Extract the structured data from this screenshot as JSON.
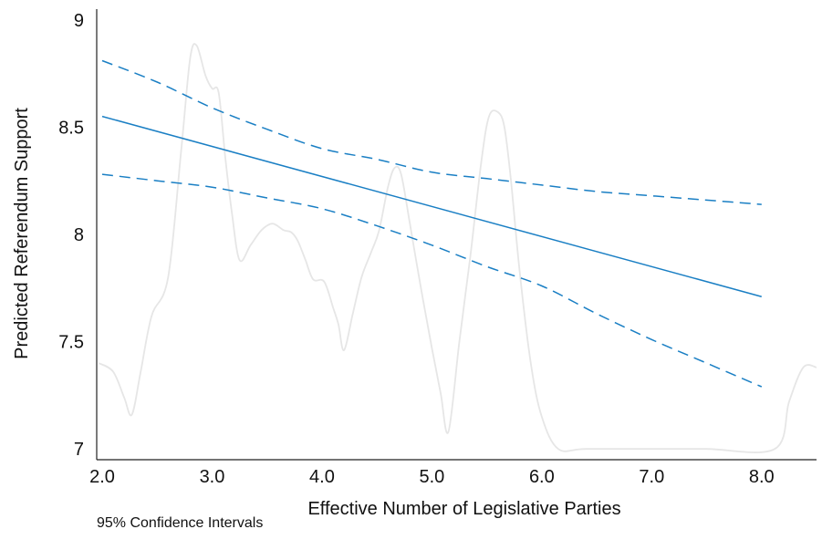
{
  "chart_data": {
    "type": "line",
    "xlabel": "Effective Number of Legislative Parties",
    "ylabel": "Predicted Referendum Support",
    "xlim": [
      1.95,
      8.5
    ],
    "ylim": [
      6.95,
      9.05
    ],
    "x_ticks": [
      2.0,
      3.0,
      4.0,
      5.0,
      6.0,
      7.0,
      8.0
    ],
    "x_tick_labels": [
      "2.0",
      "3.0",
      "4.0",
      "5.0",
      "6.0",
      "7.0",
      "8.0"
    ],
    "y_ticks": [
      7,
      7.5,
      8,
      8.5,
      9
    ],
    "y_tick_labels": [
      "7",
      "7.5",
      "8",
      "8.5",
      "9"
    ],
    "grid": false,
    "series": [
      {
        "role": "fit",
        "style": "solid",
        "color": "#1a7fc4",
        "x": [
          2.0,
          8.0
        ],
        "y": [
          8.55,
          7.71
        ]
      },
      {
        "role": "upper-ci",
        "style": "dashed",
        "color": "#1a7fc4",
        "x": [
          2.0,
          2.5,
          3.0,
          3.5,
          4.0,
          4.5,
          5.0,
          5.5,
          6.0,
          6.5,
          7.0,
          7.5,
          8.0
        ],
        "y": [
          8.81,
          8.71,
          8.59,
          8.49,
          8.4,
          8.35,
          8.29,
          8.26,
          8.23,
          8.2,
          8.18,
          8.16,
          8.14
        ]
      },
      {
        "role": "lower-ci",
        "style": "dashed",
        "color": "#1a7fc4",
        "x": [
          2.0,
          2.5,
          3.0,
          3.5,
          4.0,
          4.5,
          5.0,
          5.5,
          6.0,
          6.5,
          7.0,
          7.5,
          8.0
        ],
        "y": [
          8.28,
          8.25,
          8.22,
          8.17,
          8.12,
          8.04,
          7.95,
          7.85,
          7.76,
          7.63,
          7.51,
          7.4,
          7.29
        ]
      },
      {
        "role": "distribution-background",
        "style": "solid",
        "color": "#e6e6e6",
        "x": [
          1.97,
          2.1,
          2.2,
          2.27,
          2.35,
          2.45,
          2.6,
          2.72,
          2.8,
          2.86,
          2.94,
          3.0,
          3.06,
          3.12,
          3.18,
          3.25,
          3.35,
          3.45,
          3.55,
          3.65,
          3.72,
          3.78,
          3.85,
          3.92,
          4.02,
          4.1,
          4.15,
          4.2,
          4.28,
          4.36,
          4.45,
          4.52,
          4.6,
          4.66,
          4.72,
          4.8,
          4.9,
          5.0,
          5.08,
          5.15,
          5.25,
          5.35,
          5.45,
          5.52,
          5.6,
          5.66,
          5.72,
          5.8,
          5.9,
          6.0,
          6.15,
          6.4,
          7.0,
          7.5,
          8.12,
          8.25,
          8.38,
          8.5
        ],
        "y": [
          7.4,
          7.36,
          7.24,
          7.16,
          7.36,
          7.62,
          7.8,
          8.4,
          8.82,
          8.88,
          8.74,
          8.68,
          8.66,
          8.36,
          8.1,
          7.88,
          7.95,
          8.02,
          8.05,
          8.02,
          8.01,
          7.97,
          7.88,
          7.79,
          7.78,
          7.66,
          7.58,
          7.46,
          7.63,
          7.8,
          7.92,
          8.02,
          8.22,
          8.31,
          8.28,
          8.05,
          7.75,
          7.47,
          7.26,
          7.08,
          7.5,
          7.9,
          8.34,
          8.55,
          8.57,
          8.5,
          8.25,
          7.82,
          7.4,
          7.15,
          7.0,
          7.0,
          7.0,
          7.0,
          7.0,
          7.22,
          7.38,
          7.38
        ]
      }
    ],
    "annotations": [
      "95% Confidence Intervals"
    ]
  },
  "footnote": "95% Confidence Intervals"
}
